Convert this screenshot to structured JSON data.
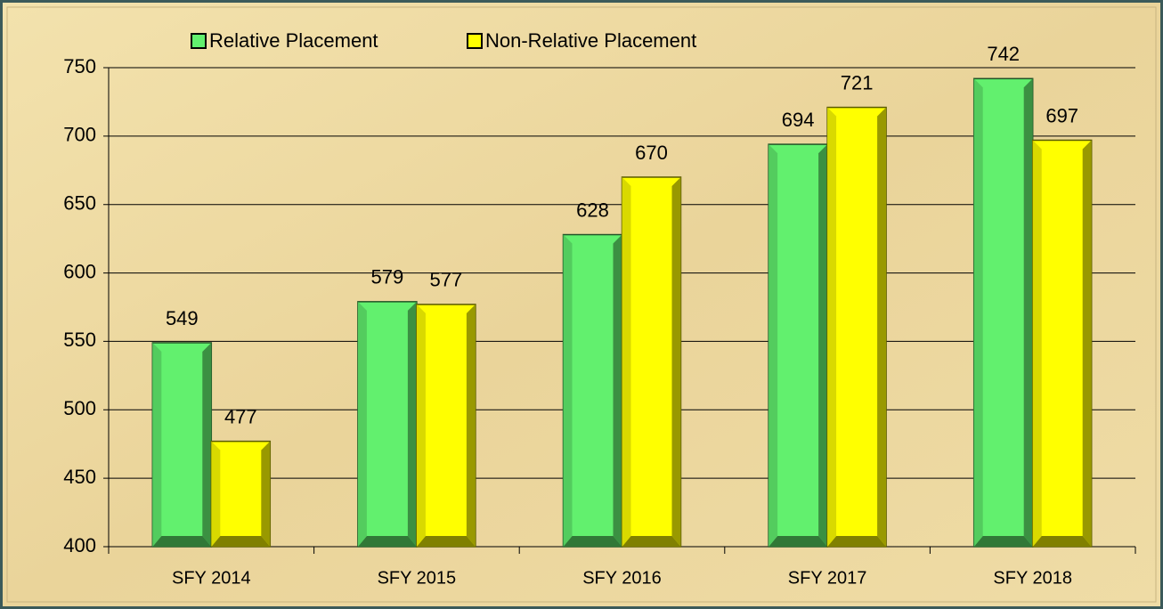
{
  "chart_data": {
    "type": "bar",
    "categories": [
      "SFY 2014",
      "SFY 2015",
      "SFY 2016",
      "SFY 2017",
      "SFY 2018"
    ],
    "series": [
      {
        "name": "Relative Placement",
        "color": "#62f06e",
        "values": [
          549,
          579,
          628,
          694,
          742
        ]
      },
      {
        "name": "Non-Relative Placement",
        "color": "#ffff00",
        "values": [
          477,
          577,
          670,
          721,
          697
        ]
      }
    ],
    "ylim": [
      400,
      750
    ],
    "yticks": [
      400,
      450,
      500,
      550,
      600,
      650,
      700,
      750
    ],
    "grid": true,
    "legend": "top"
  }
}
